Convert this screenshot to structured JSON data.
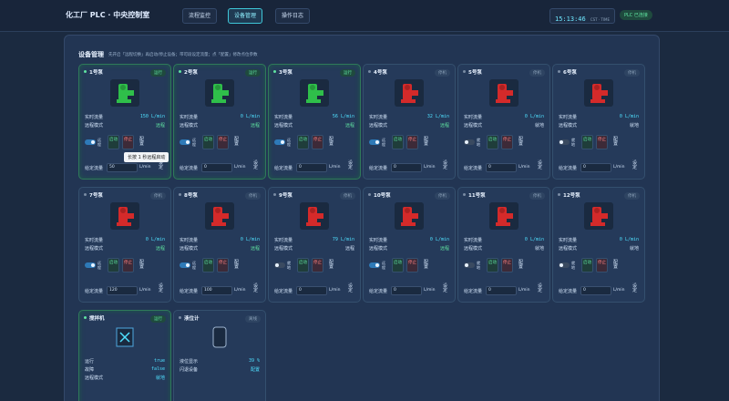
{
  "header": {
    "logo": "化工厂 PLC · 中央控制室",
    "tabs": [
      "流程监控",
      "设备管理",
      "操作日志"
    ],
    "time": "15:13:46",
    "time_note": "CST · TIME",
    "plc": "PLC 已连接"
  },
  "panel": {
    "title": "设备管理",
    "subtitle": "先开启「远程切换」再启动/停止设备；带可段设定流量；点「配置」修改点位参数",
    "tooltip": "长按 1 秒远程启动"
  },
  "labels": {
    "flow": "实时流量",
    "mode": "远程模式",
    "start": "启动",
    "stop": "停止",
    "config": "配置",
    "setpoint": "给定流量",
    "unit": "L/min",
    "set": "设定"
  },
  "pumps": [
    {
      "name": "1号泵",
      "badge": "运行",
      "icon_color": "#2fbf4a",
      "flow": "150",
      "mode": "远程",
      "toggle": "远程",
      "setpoint": "50"
    },
    {
      "name": "2号泵",
      "badge": "运行",
      "icon_color": "#2fbf4a",
      "flow": "0",
      "mode": "远程",
      "toggle": "远程",
      "setpoint": "0"
    },
    {
      "name": "3号泵",
      "badge": "运行",
      "icon_color": "#2fbf4a",
      "flow": "56",
      "mode": "远程",
      "toggle": "远程",
      "setpoint": "0"
    },
    {
      "name": "4号泵",
      "badge": "停机",
      "icon_color": "#d42a2a",
      "flow": "32",
      "mode": "远程",
      "toggle": "远程",
      "setpoint": "0"
    },
    {
      "name": "5号泵",
      "badge": "停机",
      "icon_color": "#d42a2a",
      "flow": "0",
      "mode": "就地",
      "toggle": "就地",
      "setpoint": "0"
    },
    {
      "name": "6号泵",
      "badge": "停机",
      "icon_color": "#d42a2a",
      "flow": "0",
      "mode": "就地",
      "toggle": "就地",
      "setpoint": "0"
    },
    {
      "name": "7号泵",
      "badge": "停机",
      "icon_color": "#d42a2a",
      "flow": "0",
      "mode": "远程",
      "toggle": "远程",
      "setpoint": "120"
    },
    {
      "name": "8号泵",
      "badge": "停机",
      "icon_color": "#d42a2a",
      "flow": "0",
      "mode": "远程",
      "toggle": "远程",
      "setpoint": "100"
    },
    {
      "name": "9号泵",
      "badge": "停机",
      "icon_color": "#d42a2a",
      "flow": "79",
      "mode": "远程",
      "toggle": "就地",
      "setpoint": "0"
    },
    {
      "name": "10号泵",
      "badge": "停机",
      "icon_color": "#d42a2a",
      "flow": "0",
      "mode": "远程",
      "toggle": "远程",
      "setpoint": "0"
    },
    {
      "name": "11号泵",
      "badge": "停机",
      "icon_color": "#d42a2a",
      "flow": "0",
      "mode": "就地",
      "toggle": "就地",
      "setpoint": "0"
    },
    {
      "name": "12号泵",
      "badge": "停机",
      "icon_color": "#d42a2a",
      "flow": "0",
      "mode": "就地",
      "toggle": "就地",
      "setpoint": "0"
    }
  ],
  "mixer": {
    "name": "搅拌机",
    "badge": "运行",
    "rows": [
      [
        "运行",
        "true"
      ],
      [
        "故障",
        "false"
      ],
      [
        "远程模式",
        "就地"
      ]
    ]
  },
  "level": {
    "name": "液位计",
    "badge": "离线",
    "rows": [
      [
        "液位显示",
        "39 %"
      ],
      [
        "闪退设备",
        "配置"
      ]
    ]
  }
}
